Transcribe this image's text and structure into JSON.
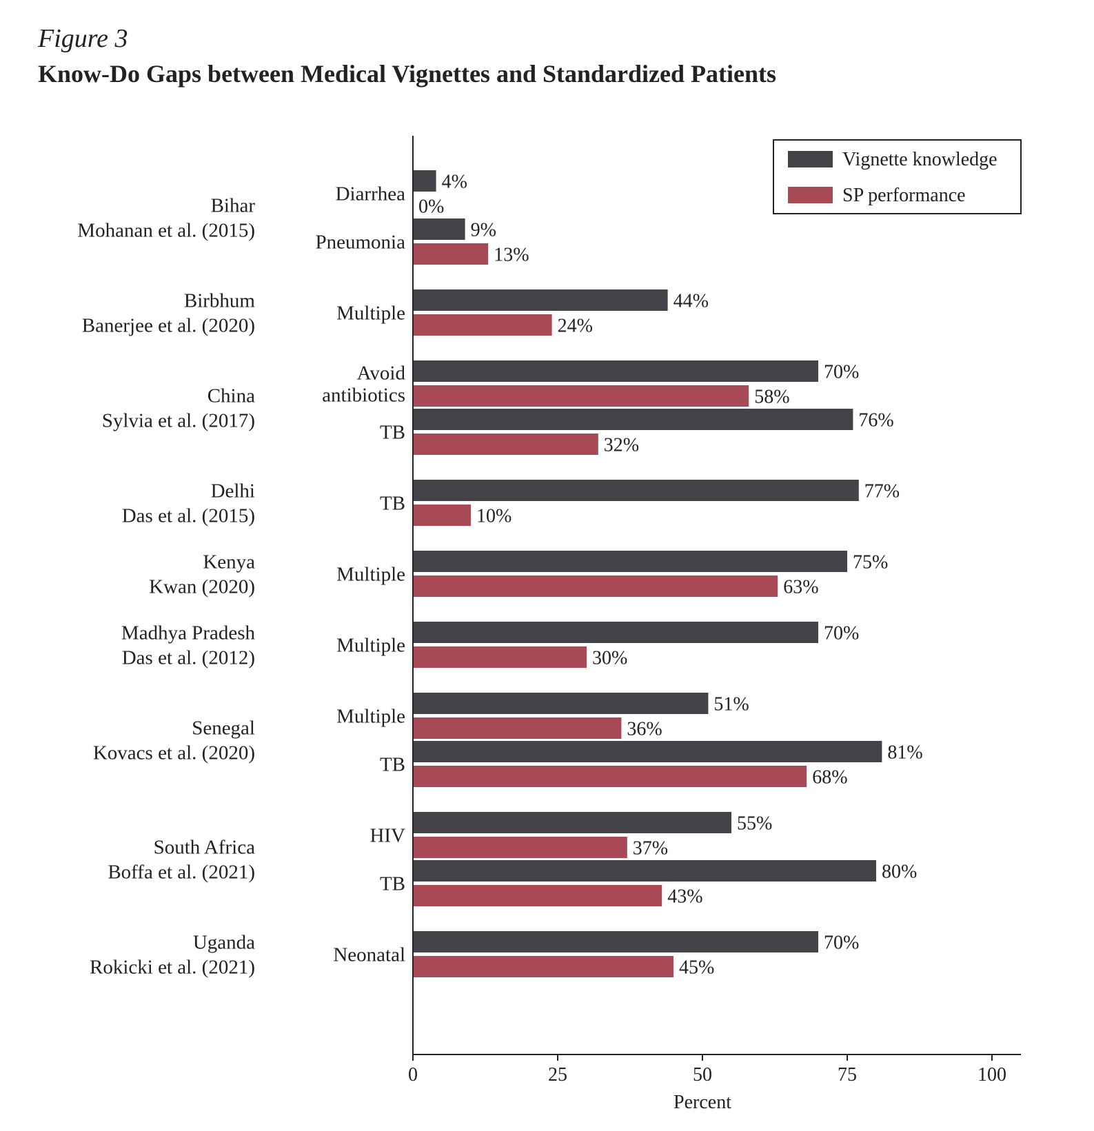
{
  "figure_label": "Figure 3",
  "figure_title": "Know-Do Gaps between Medical Vignettes and Standardized Patients",
  "chart_data": {
    "type": "bar",
    "orientation": "horizontal",
    "xlabel": "Percent",
    "xlim": [
      0,
      105
    ],
    "xticks": [
      0,
      25,
      50,
      75,
      100
    ],
    "legend_position": "top-right",
    "series": [
      {
        "name": "Vignette knowledge",
        "color": "#434349"
      },
      {
        "name": "SP performance",
        "color": "#a84a55"
      }
    ],
    "groups": [
      {
        "study": [
          "Bihar",
          "Mohanan et al. (2015)"
        ],
        "conditions": [
          {
            "label": [
              "Diarrhea"
            ],
            "vignette": 4,
            "sp": 0
          },
          {
            "label": [
              "Pneumonia"
            ],
            "vignette": 9,
            "sp": 13
          }
        ]
      },
      {
        "study": [
          "Birbhum",
          "Banerjee et al. (2020)"
        ],
        "conditions": [
          {
            "label": [
              "Multiple"
            ],
            "vignette": 44,
            "sp": 24
          }
        ]
      },
      {
        "study": [
          "China",
          "Sylvia et al. (2017)"
        ],
        "conditions": [
          {
            "label": [
              "Avoid",
              "antibiotics"
            ],
            "vignette": 70,
            "sp": 58
          },
          {
            "label": [
              "TB"
            ],
            "vignette": 76,
            "sp": 32
          }
        ]
      },
      {
        "study": [
          "Delhi",
          "Das et al. (2015)"
        ],
        "conditions": [
          {
            "label": [
              "TB"
            ],
            "vignette": 77,
            "sp": 10
          }
        ]
      },
      {
        "study": [
          "Kenya",
          "Kwan (2020)"
        ],
        "conditions": [
          {
            "label": [
              "Multiple"
            ],
            "vignette": 75,
            "sp": 63
          }
        ]
      },
      {
        "study": [
          "Madhya Pradesh",
          "Das et al. (2012)"
        ],
        "conditions": [
          {
            "label": [
              "Multiple"
            ],
            "vignette": 70,
            "sp": 30
          }
        ]
      },
      {
        "study": [
          "Senegal",
          "Kovacs et al. (2020)"
        ],
        "conditions": [
          {
            "label": [
              "Multiple"
            ],
            "vignette": 51,
            "sp": 36
          },
          {
            "label": [
              "TB"
            ],
            "vignette": 81,
            "sp": 68
          }
        ]
      },
      {
        "study": [
          "South Africa",
          "Boffa et al. (2021)"
        ],
        "conditions": [
          {
            "label": [
              "HIV"
            ],
            "vignette": 55,
            "sp": 37
          },
          {
            "label": [
              "TB"
            ],
            "vignette": 80,
            "sp": 43
          }
        ]
      },
      {
        "study": [
          "Uganda",
          "Rokicki et al. (2021)"
        ],
        "conditions": [
          {
            "label": [
              "Neonatal"
            ],
            "vignette": 70,
            "sp": 45
          }
        ]
      }
    ]
  }
}
